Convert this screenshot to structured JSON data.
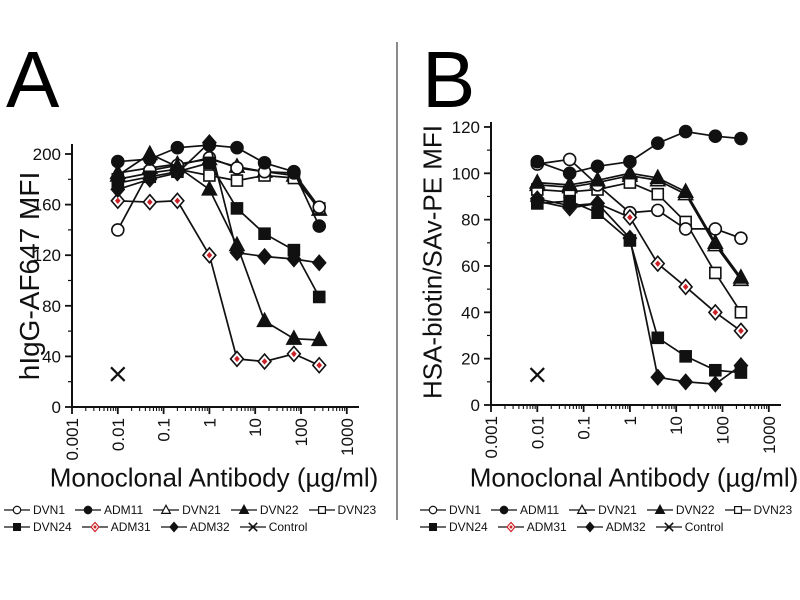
{
  "figure": {
    "background": "#ffffff",
    "divider_color": "#8a8a8a"
  },
  "colors": {
    "ink": "#111111",
    "accent_red": "#cd2128",
    "marker_open_fill": "#ffffff"
  },
  "legend": {
    "rows": [
      [
        "DVN1",
        "ADM11",
        "DVN21",
        "DVN22",
        "DVN23"
      ],
      [
        "DVN24",
        "ADM31",
        "ADM32",
        "Control"
      ]
    ]
  },
  "chart_data": [
    {
      "type": "line",
      "panel_label": "A",
      "xlabel": "Monoclonal Antibody (µg/ml)",
      "ylabel": "hIgG-AF647 MFI",
      "x_scale": "log",
      "xlim": [
        0.001,
        1000
      ],
      "ylim": [
        0,
        200
      ],
      "x_ticks": [
        0.001,
        0.01,
        0.1,
        1,
        10,
        100,
        1000
      ],
      "x_tick_labels": [
        "0.001",
        "0.01",
        "0.1",
        "1",
        "10",
        "100",
        "1000"
      ],
      "y_ticks": [
        0,
        40,
        80,
        120,
        160,
        200
      ],
      "y_minor_step": 20,
      "grid": false,
      "legend_position": "below",
      "x": [
        0.01,
        0.05,
        0.2,
        1,
        4,
        16,
        70,
        250
      ],
      "series": [
        {
          "name": "DVN1",
          "marker": "circle-open",
          "values": [
            140,
            187,
            191,
            197,
            189,
            186,
            185,
            158
          ]
        },
        {
          "name": "ADM11",
          "marker": "circle-filled",
          "values": [
            194,
            196,
            205,
            207,
            205,
            193,
            186,
            143
          ]
        },
        {
          "name": "DVN21",
          "marker": "triangle-open",
          "values": [
            185,
            189,
            192,
            196,
            190,
            186,
            183,
            156
          ]
        },
        {
          "name": "DVN22",
          "marker": "triangle-filled",
          "values": [
            183,
            200,
            190,
            172,
            128,
            68,
            54,
            53
          ]
        },
        {
          "name": "DVN23",
          "marker": "square-open",
          "values": [
            180,
            185,
            188,
            183,
            179,
            183,
            181,
            157
          ]
        },
        {
          "name": "DVN24",
          "marker": "square-filled",
          "values": [
            177,
            182,
            186,
            193,
            157,
            137,
            124,
            87
          ]
        },
        {
          "name": "ADM31",
          "marker": "diamond-open-red",
          "values": [
            163,
            162,
            163,
            120,
            38,
            36,
            42,
            33
          ]
        },
        {
          "name": "ADM32",
          "marker": "diamond-filled",
          "values": [
            172,
            180,
            185,
            209,
            122,
            119,
            117,
            114
          ]
        },
        {
          "name": "Control",
          "marker": "x-cross",
          "values": [
            26,
            null,
            null,
            null,
            null,
            null,
            null,
            null
          ]
        }
      ]
    },
    {
      "type": "line",
      "panel_label": "B",
      "xlabel": "Monoclonal Antibody (µg/ml)",
      "ylabel": "HSA-biotin/SAv-PE MFI",
      "x_scale": "log",
      "xlim": [
        0.001,
        1000
      ],
      "ylim": [
        0,
        120
      ],
      "x_ticks": [
        0.001,
        0.01,
        0.1,
        1,
        10,
        100,
        1000
      ],
      "x_tick_labels": [
        "0.001",
        "0.01",
        "0.1",
        "1",
        "10",
        "100",
        "1000"
      ],
      "y_ticks": [
        0,
        20,
        40,
        60,
        80,
        100,
        120
      ],
      "y_minor_step": 10,
      "grid": false,
      "legend_position": "below",
      "x": [
        0.01,
        0.05,
        0.2,
        1,
        4,
        16,
        70,
        250
      ],
      "series": [
        {
          "name": "DVN1",
          "marker": "circle-open",
          "values": [
            104,
            106,
            95,
            83,
            84,
            76,
            76,
            72
          ]
        },
        {
          "name": "ADM11",
          "marker": "circle-filled",
          "values": [
            105,
            100,
            103,
            105,
            113,
            118,
            116,
            115
          ]
        },
        {
          "name": "DVN21",
          "marker": "triangle-open",
          "values": [
            95,
            94,
            96,
            99,
            97,
            91,
            69,
            54
          ]
        },
        {
          "name": "DVN22",
          "marker": "triangle-filled",
          "values": [
            96,
            95,
            97,
            100,
            98,
            92,
            70,
            55
          ]
        },
        {
          "name": "DVN23",
          "marker": "square-open",
          "values": [
            93,
            92,
            93,
            96,
            91,
            79,
            57,
            40
          ]
        },
        {
          "name": "DVN24",
          "marker": "square-filled",
          "values": [
            87,
            88,
            83,
            71,
            29,
            21,
            15,
            14
          ]
        },
        {
          "name": "ADM31",
          "marker": "diamond-open-red",
          "values": [
            88,
            85,
            87,
            81,
            61,
            51,
            40,
            32
          ]
        },
        {
          "name": "ADM32",
          "marker": "diamond-filled",
          "values": [
            89,
            86,
            87,
            72,
            12,
            10,
            9,
            17
          ]
        },
        {
          "name": "Control",
          "marker": "x-cross",
          "values": [
            13,
            null,
            null,
            null,
            null,
            null,
            null,
            null
          ]
        }
      ]
    }
  ]
}
